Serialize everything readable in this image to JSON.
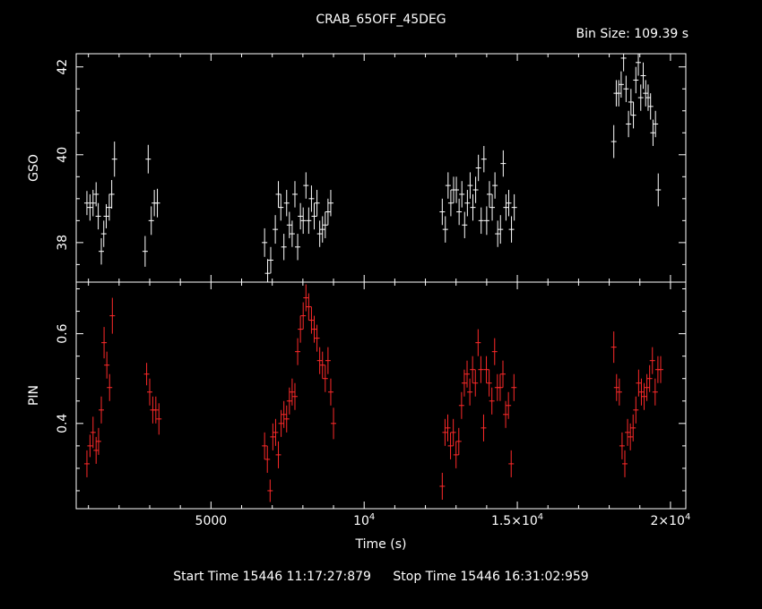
{
  "title": "CRAB_65OFF_45DEG",
  "bin_size_label": "Bin Size:  109.39  s",
  "footer": {
    "start": "Start Time 15446  11:17:27:879",
    "stop": "Stop Time 15446  16:31:02:959"
  },
  "colors": {
    "background": "#000000",
    "axes": "#ffffff",
    "gso": "#ffffff",
    "pin": "#ff2a2a"
  },
  "chart_data": [
    {
      "type": "scatter",
      "panel": "top",
      "ylabel": "GSO",
      "ylim": [
        37.1,
        42.3
      ],
      "yticks": [
        38,
        40,
        42
      ],
      "xlim": [
        600,
        20500
      ],
      "series": [
        {
          "points": [
            [
              950,
              38.9,
              0.55
            ],
            [
              1050,
              38.8,
              0.6
            ],
            [
              1150,
              38.9,
              0.6
            ],
            [
              1250,
              39.1,
              0.55
            ],
            [
              1320,
              38.6,
              0.6
            ],
            [
              1420,
              37.8,
              0.6
            ],
            [
              1500,
              38.2,
              0.6
            ],
            [
              1580,
              38.6,
              0.55
            ],
            [
              1680,
              38.8,
              0.6
            ],
            [
              1760,
              39.1,
              0.65
            ],
            [
              1850,
              39.9,
              0.8
            ],
            [
              2850,
              37.8,
              0.7
            ],
            [
              2950,
              39.9,
              0.65
            ],
            [
              3050,
              38.5,
              0.65
            ],
            [
              3150,
              38.9,
              0.6
            ],
            [
              3250,
              38.9,
              0.65
            ],
            [
              6750,
              38.0,
              0.65
            ],
            [
              6850,
              37.3,
              0.65
            ],
            [
              6950,
              37.6,
              0.6
            ],
            [
              7100,
              38.3,
              0.65
            ],
            [
              7200,
              39.1,
              0.6
            ],
            [
              7280,
              38.8,
              0.6
            ],
            [
              7380,
              37.9,
              0.6
            ],
            [
              7470,
              38.9,
              0.6
            ],
            [
              7560,
              38.4,
              0.6
            ],
            [
              7650,
              38.2,
              0.6
            ],
            [
              7740,
              39.1,
              0.6
            ],
            [
              7830,
              37.9,
              0.6
            ],
            [
              7920,
              38.6,
              0.6
            ],
            [
              8010,
              38.5,
              0.6
            ],
            [
              8100,
              39.3,
              0.6
            ],
            [
              8190,
              38.5,
              0.6
            ],
            [
              8280,
              39.0,
              0.6
            ],
            [
              8370,
              38.6,
              0.6
            ],
            [
              8460,
              38.9,
              0.6
            ],
            [
              8550,
              38.2,
              0.6
            ],
            [
              8640,
              38.3,
              0.6
            ],
            [
              8730,
              38.4,
              0.6
            ],
            [
              8820,
              38.7,
              0.6
            ],
            [
              8910,
              38.9,
              0.6
            ],
            [
              12550,
              38.7,
              0.6
            ],
            [
              12650,
              38.3,
              0.6
            ],
            [
              12740,
              39.3,
              0.6
            ],
            [
              12830,
              38.9,
              0.6
            ],
            [
              12920,
              39.2,
              0.6
            ],
            [
              13010,
              39.2,
              0.6
            ],
            [
              13100,
              38.7,
              0.6
            ],
            [
              13190,
              39.1,
              0.6
            ],
            [
              13280,
              38.4,
              0.6
            ],
            [
              13370,
              38.9,
              0.6
            ],
            [
              13460,
              39.3,
              0.6
            ],
            [
              13550,
              38.8,
              0.6
            ],
            [
              13640,
              39.2,
              0.6
            ],
            [
              13730,
              39.7,
              0.6
            ],
            [
              13820,
              38.5,
              0.6
            ],
            [
              13910,
              39.9,
              0.6
            ],
            [
              14000,
              38.5,
              0.65
            ],
            [
              14090,
              39.1,
              0.6
            ],
            [
              14180,
              38.8,
              0.6
            ],
            [
              14270,
              39.3,
              0.6
            ],
            [
              14360,
              38.2,
              0.6
            ],
            [
              14450,
              38.3,
              0.65
            ],
            [
              14540,
              39.8,
              0.6
            ],
            [
              14630,
              38.8,
              0.6
            ],
            [
              14720,
              38.9,
              0.6
            ],
            [
              14810,
              38.3,
              0.6
            ],
            [
              14900,
              38.8,
              0.6
            ],
            [
              18150,
              40.3,
              0.75
            ],
            [
              18230,
              41.4,
              0.6
            ],
            [
              18310,
              41.4,
              0.6
            ],
            [
              18390,
              41.6,
              0.6
            ],
            [
              18470,
              42.2,
              0.6
            ],
            [
              18550,
              41.5,
              0.6
            ],
            [
              18630,
              40.7,
              0.6
            ],
            [
              18710,
              41.2,
              0.6
            ],
            [
              18790,
              40.9,
              0.6
            ],
            [
              18870,
              41.7,
              0.6
            ],
            [
              18950,
              42.1,
              0.6
            ],
            [
              19030,
              41.3,
              0.6
            ],
            [
              19110,
              41.8,
              0.6
            ],
            [
              19190,
              41.4,
              0.6
            ],
            [
              19270,
              41.3,
              0.6
            ],
            [
              19350,
              41.1,
              0.6
            ],
            [
              19430,
              40.5,
              0.6
            ],
            [
              19510,
              40.7,
              0.6
            ],
            [
              19600,
              39.2,
              0.75
            ]
          ]
        }
      ]
    },
    {
      "type": "scatter",
      "panel": "bottom",
      "ylabel": "PIN",
      "xlabel": "Time (s)",
      "ylim": [
        0.21,
        0.715
      ],
      "yticks": [
        0.4,
        0.6
      ],
      "xlim": [
        600,
        20500
      ],
      "xticks": [
        {
          "value": 5000,
          "label": "5000"
        },
        {
          "value": 10000,
          "label": "10",
          "sup": "4"
        },
        {
          "value": 15000,
          "label": "1.5×10",
          "sup": "4"
        },
        {
          "value": 20000,
          "label": "2×10",
          "sup": "4"
        }
      ],
      "series": [
        {
          "points": [
            [
              950,
              0.31,
              0.06
            ],
            [
              1050,
              0.35,
              0.05
            ],
            [
              1150,
              0.38,
              0.07
            ],
            [
              1250,
              0.34,
              0.06
            ],
            [
              1330,
              0.36,
              0.06
            ],
            [
              1420,
              0.43,
              0.06
            ],
            [
              1510,
              0.58,
              0.07
            ],
            [
              1600,
              0.53,
              0.06
            ],
            [
              1690,
              0.48,
              0.06
            ],
            [
              1780,
              0.64,
              0.08
            ],
            [
              2900,
              0.51,
              0.05
            ],
            [
              3000,
              0.47,
              0.06
            ],
            [
              3100,
              0.43,
              0.06
            ],
            [
              3200,
              0.43,
              0.06
            ],
            [
              3300,
              0.41,
              0.07
            ],
            [
              6750,
              0.35,
              0.06
            ],
            [
              6840,
              0.32,
              0.06
            ],
            [
              6930,
              0.25,
              0.05
            ],
            [
              7020,
              0.37,
              0.06
            ],
            [
              7110,
              0.38,
              0.06
            ],
            [
              7200,
              0.33,
              0.06
            ],
            [
              7290,
              0.4,
              0.06
            ],
            [
              7380,
              0.42,
              0.06
            ],
            [
              7470,
              0.41,
              0.06
            ],
            [
              7560,
              0.45,
              0.06
            ],
            [
              7650,
              0.47,
              0.06
            ],
            [
              7740,
              0.46,
              0.06
            ],
            [
              7830,
              0.56,
              0.06
            ],
            [
              7920,
              0.61,
              0.06
            ],
            [
              8010,
              0.64,
              0.06
            ],
            [
              8100,
              0.68,
              0.06
            ],
            [
              8190,
              0.66,
              0.06
            ],
            [
              8280,
              0.63,
              0.06
            ],
            [
              8370,
              0.61,
              0.06
            ],
            [
              8460,
              0.59,
              0.06
            ],
            [
              8550,
              0.54,
              0.06
            ],
            [
              8640,
              0.53,
              0.06
            ],
            [
              8730,
              0.5,
              0.06
            ],
            [
              8820,
              0.54,
              0.06
            ],
            [
              8910,
              0.47,
              0.06
            ],
            [
              9000,
              0.4,
              0.07
            ],
            [
              12550,
              0.26,
              0.06
            ],
            [
              12640,
              0.38,
              0.06
            ],
            [
              12730,
              0.39,
              0.06
            ],
            [
              12820,
              0.35,
              0.06
            ],
            [
              12910,
              0.38,
              0.06
            ],
            [
              13000,
              0.33,
              0.06
            ],
            [
              13090,
              0.36,
              0.06
            ],
            [
              13180,
              0.44,
              0.06
            ],
            [
              13270,
              0.49,
              0.06
            ],
            [
              13360,
              0.51,
              0.06
            ],
            [
              13450,
              0.47,
              0.06
            ],
            [
              13540,
              0.52,
              0.06
            ],
            [
              13630,
              0.49,
              0.06
            ],
            [
              13720,
              0.58,
              0.06
            ],
            [
              13810,
              0.52,
              0.06
            ],
            [
              13900,
              0.39,
              0.06
            ],
            [
              13990,
              0.52,
              0.06
            ],
            [
              14080,
              0.49,
              0.06
            ],
            [
              14170,
              0.45,
              0.06
            ],
            [
              14260,
              0.56,
              0.06
            ],
            [
              14350,
              0.48,
              0.06
            ],
            [
              14440,
              0.48,
              0.06
            ],
            [
              14530,
              0.51,
              0.06
            ],
            [
              14620,
              0.42,
              0.06
            ],
            [
              14710,
              0.44,
              0.06
            ],
            [
              14800,
              0.31,
              0.06
            ],
            [
              14890,
              0.48,
              0.06
            ],
            [
              18150,
              0.57,
              0.07
            ],
            [
              18240,
              0.48,
              0.06
            ],
            [
              18330,
              0.47,
              0.06
            ],
            [
              18420,
              0.35,
              0.06
            ],
            [
              18510,
              0.31,
              0.06
            ],
            [
              18600,
              0.38,
              0.06
            ],
            [
              18690,
              0.37,
              0.06
            ],
            [
              18780,
              0.39,
              0.06
            ],
            [
              18870,
              0.43,
              0.06
            ],
            [
              18960,
              0.49,
              0.06
            ],
            [
              19050,
              0.47,
              0.06
            ],
            [
              19140,
              0.46,
              0.06
            ],
            [
              19230,
              0.48,
              0.06
            ],
            [
              19320,
              0.5,
              0.06
            ],
            [
              19410,
              0.54,
              0.06
            ],
            [
              19500,
              0.47,
              0.06
            ],
            [
              19590,
              0.52,
              0.06
            ],
            [
              19680,
              0.52,
              0.06
            ]
          ]
        }
      ]
    }
  ]
}
